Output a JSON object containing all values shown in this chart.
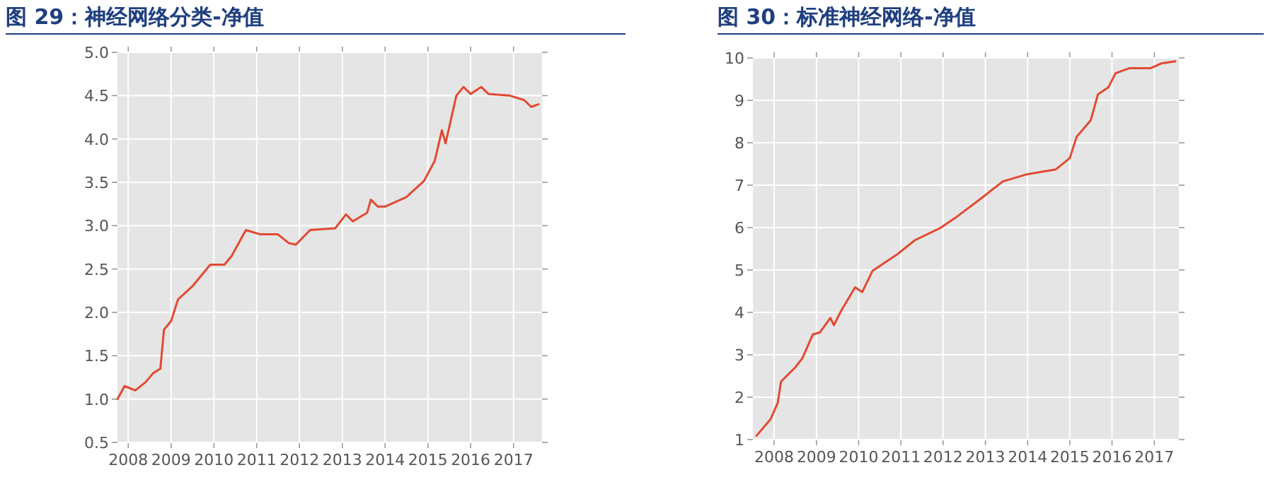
{
  "chart_data": [
    {
      "type": "line",
      "title": "图 29：神经网络分类-净值",
      "grid": true,
      "color": "#e24a33",
      "xlim": [
        "2007-10",
        "2017-09"
      ],
      "xticks": [
        {
          "value": "2008-01",
          "label": "2008"
        },
        {
          "value": "2009-01",
          "label": "2009"
        },
        {
          "value": "2010-01",
          "label": "2010"
        },
        {
          "value": "2011-01",
          "label": "2011"
        },
        {
          "value": "2012-01",
          "label": "2012"
        },
        {
          "value": "2013-01",
          "label": "2013"
        },
        {
          "value": "2014-01",
          "label": "2014"
        },
        {
          "value": "2015-01",
          "label": "2015"
        },
        {
          "value": "2016-01",
          "label": "2016"
        },
        {
          "value": "2017-01",
          "label": "2017"
        }
      ],
      "ylim": [
        0.5,
        5.0
      ],
      "yticks": [
        {
          "value": 0.5,
          "label": "0.5"
        },
        {
          "value": 1,
          "label": "1.0"
        },
        {
          "value": 1.5,
          "label": "1.5"
        },
        {
          "value": 2,
          "label": "2.0"
        },
        {
          "value": 2.5,
          "label": "2.5"
        },
        {
          "value": 3,
          "label": "3.0"
        },
        {
          "value": 3.5,
          "label": "3.5"
        },
        {
          "value": 4,
          "label": "4.0"
        },
        {
          "value": 4.5,
          "label": "4.5"
        },
        {
          "value": 5,
          "label": "5.0"
        }
      ],
      "x": [
        "2007-10",
        "2007-12",
        "2008-03",
        "2008-06",
        "2008-08",
        "2008-10",
        "2008-11",
        "2009-01",
        "2009-03",
        "2009-07",
        "2009-12",
        "2010-04",
        "2010-06",
        "2010-10",
        "2011-02",
        "2011-07",
        "2011-10",
        "2011-12",
        "2012-04",
        "2012-11",
        "2013-02",
        "2013-04",
        "2013-08",
        "2013-09",
        "2013-11",
        "2014-01",
        "2014-07",
        "2014-12",
        "2015-03",
        "2015-05",
        "2015-06",
        "2015-09",
        "2015-11",
        "2016-01",
        "2016-04",
        "2016-06",
        "2016-12",
        "2017-04",
        "2017-06",
        "2017-08"
      ],
      "values": [
        1.0,
        1.15,
        1.1,
        1.2,
        1.3,
        1.35,
        1.8,
        1.9,
        2.15,
        2.3,
        2.55,
        2.55,
        2.65,
        2.95,
        2.9,
        2.9,
        2.8,
        2.78,
        2.95,
        2.97,
        3.13,
        3.05,
        3.15,
        3.3,
        3.22,
        3.22,
        3.33,
        3.52,
        3.75,
        4.1,
        3.95,
        4.5,
        4.6,
        4.52,
        4.6,
        4.52,
        4.5,
        4.45,
        4.37,
        4.4
      ]
    },
    {
      "type": "line",
      "title": "图 30：标准神经网络-净值",
      "grid": true,
      "color": "#e24a33",
      "xlim": [
        "2007-07",
        "2017-08"
      ],
      "xticks": [
        {
          "value": "2008-01",
          "label": "2008"
        },
        {
          "value": "2009-01",
          "label": "2009"
        },
        {
          "value": "2010-01",
          "label": "2010"
        },
        {
          "value": "2011-01",
          "label": "2011"
        },
        {
          "value": "2012-01",
          "label": "2012"
        },
        {
          "value": "2013-01",
          "label": "2013"
        },
        {
          "value": "2014-01",
          "label": "2014"
        },
        {
          "value": "2015-01",
          "label": "2015"
        },
        {
          "value": "2016-01",
          "label": "2016"
        },
        {
          "value": "2017-01",
          "label": "2017"
        }
      ],
      "ylim": [
        1,
        10
      ],
      "yticks": [
        1,
        2,
        3,
        4,
        5,
        6,
        7,
        8,
        9,
        10
      ],
      "x": [
        "2007-08",
        "2007-12",
        "2008-02",
        "2008-03",
        "2008-07",
        "2008-09",
        "2008-12",
        "2009-02",
        "2009-05",
        "2009-06",
        "2009-08",
        "2009-12",
        "2010-02",
        "2010-05",
        "2010-12",
        "2011-05",
        "2011-12",
        "2012-05",
        "2012-12",
        "2013-06",
        "2014-01",
        "2014-09",
        "2015-01",
        "2015-03",
        "2015-07",
        "2015-09",
        "2015-12",
        "2016-02",
        "2016-06",
        "2016-12",
        "2017-03",
        "2017-07"
      ],
      "values": [
        1.09,
        1.48,
        1.87,
        2.37,
        2.7,
        2.92,
        3.48,
        3.53,
        3.87,
        3.7,
        4.03,
        4.59,
        4.48,
        4.98,
        5.37,
        5.7,
        5.98,
        6.26,
        6.7,
        7.09,
        7.26,
        7.37,
        7.64,
        8.14,
        8.53,
        9.14,
        9.31,
        9.64,
        9.76,
        9.76,
        9.87,
        9.92
      ]
    }
  ]
}
